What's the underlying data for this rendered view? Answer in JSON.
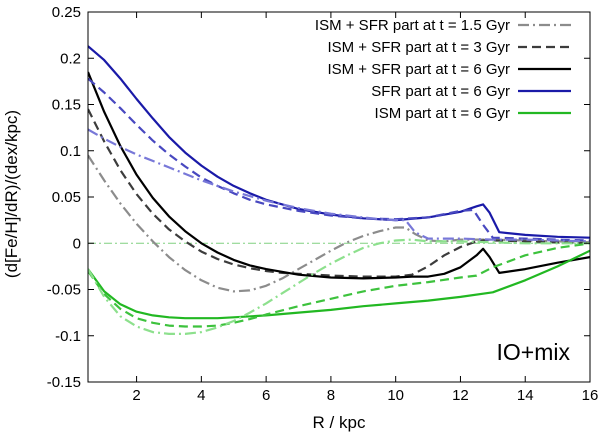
{
  "chart_data": {
    "type": "line",
    "xlabel": "R / kpc",
    "ylabel": "(d[Fe/H]/dR)/(dex/kpc)",
    "xlim": [
      0.5,
      16
    ],
    "ylim": [
      -0.15,
      0.25
    ],
    "xticks": [
      2,
      4,
      6,
      8,
      10,
      12,
      14,
      16
    ],
    "yticks": [
      -0.15,
      -0.1,
      -0.05,
      0,
      0.05,
      0.1,
      0.15,
      0.2,
      0.25
    ],
    "ytick_labels": [
      "-0.15",
      "-0.1",
      "-0.05",
      "0",
      "0.05",
      "0.1",
      "0.15",
      "0.2",
      "0.25"
    ],
    "grid": false,
    "legend_position": "top-right",
    "annotation": "IO+mix",
    "reference_line": {
      "y": 0,
      "color": "#80d080",
      "style": "dash-dot"
    },
    "legend": [
      {
        "label": "ISM + SFR part at t = 1.5 Gyr",
        "color": "#8c8c8c",
        "style": "dashdot"
      },
      {
        "label": "ISM + SFR part at t = 3 Gyr",
        "color": "#3c3c3c",
        "style": "dashed"
      },
      {
        "label": "ISM + SFR part at t = 6 Gyr",
        "color": "#000000",
        "style": "solid"
      },
      {
        "label": "SFR part at t = 6 Gyr",
        "color": "#1a1aa8",
        "style": "solid"
      },
      {
        "label": "ISM part at t = 6 Gyr",
        "color": "#22b822",
        "style": "solid"
      }
    ],
    "series": [
      {
        "color": "#8c8c8c",
        "style": "dashdot",
        "x": [
          0.5,
          1.0,
          1.5,
          2.0,
          2.5,
          3.0,
          3.5,
          4.0,
          4.5,
          5.0,
          5.5,
          6.0,
          6.5,
          7.0,
          7.5,
          8.0,
          8.5,
          9.0,
          9.5,
          10.0,
          10.3,
          10.6,
          11.0,
          11.5,
          12.0,
          13.0,
          14.0,
          15.0,
          16.0
        ],
        "y": [
          0.095,
          0.068,
          0.043,
          0.021,
          0.002,
          -0.015,
          -0.029,
          -0.04,
          -0.048,
          -0.052,
          -0.051,
          -0.046,
          -0.038,
          -0.028,
          -0.018,
          -0.008,
          0.001,
          0.008,
          0.013,
          0.017,
          0.017,
          0.01,
          0.003,
          0.002,
          0.004,
          0.004,
          0.003,
          0.002,
          0.001
        ]
      },
      {
        "color": "#3c3c3c",
        "style": "dashed",
        "x": [
          0.5,
          1.0,
          1.5,
          2.0,
          2.5,
          3.0,
          3.5,
          4.0,
          4.5,
          5.0,
          5.5,
          6.0,
          6.5,
          7.0,
          7.5,
          8.0,
          9.0,
          10.0,
          10.5,
          11.0,
          11.5,
          12.0,
          12.5,
          12.9,
          13.1,
          14.0,
          15.0,
          16.0
        ],
        "y": [
          0.145,
          0.11,
          0.079,
          0.053,
          0.032,
          0.015,
          0.002,
          -0.009,
          -0.017,
          -0.023,
          -0.027,
          -0.03,
          -0.032,
          -0.033,
          -0.034,
          -0.035,
          -0.036,
          -0.036,
          -0.034,
          -0.025,
          -0.013,
          -0.004,
          0.002,
          0.004,
          0.003,
          0.002,
          0.001,
          0.0
        ]
      },
      {
        "color": "#000000",
        "style": "solid",
        "x": [
          0.5,
          1.0,
          1.5,
          2.0,
          2.5,
          3.0,
          3.5,
          4.0,
          4.5,
          5.0,
          5.5,
          6.0,
          7.0,
          8.0,
          9.0,
          10.0,
          10.5,
          11.0,
          11.5,
          12.0,
          12.5,
          12.7,
          12.9,
          13.2,
          14.0,
          15.0,
          16.0
        ],
        "y": [
          0.185,
          0.142,
          0.105,
          0.074,
          0.049,
          0.029,
          0.013,
          0.0,
          -0.01,
          -0.018,
          -0.024,
          -0.028,
          -0.034,
          -0.037,
          -0.038,
          -0.037,
          -0.036,
          -0.036,
          -0.033,
          -0.026,
          -0.013,
          -0.006,
          -0.015,
          -0.032,
          -0.028,
          -0.021,
          -0.015
        ]
      },
      {
        "color": "#1a1aa8",
        "style": "solid",
        "x": [
          0.5,
          1.0,
          1.5,
          2.0,
          2.5,
          3.0,
          3.5,
          4.0,
          4.5,
          5.0,
          5.5,
          6.0,
          7.0,
          8.0,
          9.0,
          10.0,
          11.0,
          12.0,
          12.5,
          12.7,
          12.9,
          13.2,
          14.0,
          15.0,
          16.0
        ],
        "y": [
          0.213,
          0.198,
          0.178,
          0.156,
          0.135,
          0.115,
          0.098,
          0.084,
          0.072,
          0.062,
          0.054,
          0.047,
          0.037,
          0.031,
          0.027,
          0.025,
          0.028,
          0.034,
          0.04,
          0.042,
          0.033,
          0.012,
          0.009,
          0.007,
          0.006
        ]
      },
      {
        "color": "#4848c0",
        "style": "dashed",
        "x": [
          0.5,
          1.0,
          1.5,
          2.0,
          2.5,
          3.0,
          3.5,
          4.0,
          4.5,
          5.0,
          5.5,
          6.0,
          7.0,
          8.0,
          9.0,
          10.0,
          11.0,
          12.0,
          12.4,
          12.7,
          13.0,
          14.0,
          15.0,
          16.0
        ],
        "y": [
          0.178,
          0.163,
          0.146,
          0.128,
          0.111,
          0.096,
          0.083,
          0.071,
          0.062,
          0.054,
          0.047,
          0.042,
          0.035,
          0.03,
          0.027,
          0.026,
          0.028,
          0.035,
          0.036,
          0.02,
          0.006,
          0.005,
          0.004,
          0.003
        ]
      },
      {
        "color": "#7878d8",
        "style": "dashdot",
        "x": [
          0.5,
          1.0,
          1.5,
          2.0,
          2.5,
          3.0,
          3.5,
          4.0,
          4.5,
          5.0,
          5.5,
          6.0,
          7.0,
          8.0,
          9.0,
          9.5,
          10.0,
          10.3,
          10.6,
          11.0,
          12.0,
          13.0,
          14.0,
          15.0,
          16.0
        ],
        "y": [
          0.123,
          0.113,
          0.104,
          0.096,
          0.089,
          0.082,
          0.075,
          0.068,
          0.062,
          0.056,
          0.051,
          0.046,
          0.038,
          0.032,
          0.028,
          0.026,
          0.025,
          0.025,
          0.012,
          0.005,
          0.005,
          0.004,
          0.004,
          0.003,
          0.002
        ]
      },
      {
        "color": "#22b822",
        "style": "solid",
        "x": [
          0.5,
          1.0,
          1.5,
          2.0,
          2.5,
          3.0,
          3.5,
          4.0,
          4.5,
          5.0,
          6.0,
          7.0,
          8.0,
          9.0,
          10.0,
          11.0,
          12.0,
          13.0,
          14.0,
          15.0,
          16.0
        ],
        "y": [
          -0.028,
          -0.052,
          -0.066,
          -0.074,
          -0.078,
          -0.08,
          -0.081,
          -0.081,
          -0.081,
          -0.08,
          -0.078,
          -0.075,
          -0.072,
          -0.068,
          -0.065,
          -0.062,
          -0.058,
          -0.053,
          -0.04,
          -0.025,
          -0.008
        ]
      },
      {
        "color": "#3dc23d",
        "style": "dashed",
        "x": [
          0.5,
          1.0,
          1.5,
          2.0,
          2.5,
          3.0,
          3.5,
          4.0,
          4.5,
          5.0,
          5.5,
          6.0,
          7.0,
          8.0,
          9.0,
          10.0,
          11.0,
          12.0,
          12.5,
          13.0,
          14.0,
          15.0,
          16.0
        ],
        "y": [
          -0.03,
          -0.055,
          -0.071,
          -0.081,
          -0.086,
          -0.089,
          -0.09,
          -0.09,
          -0.089,
          -0.086,
          -0.082,
          -0.077,
          -0.068,
          -0.06,
          -0.052,
          -0.046,
          -0.042,
          -0.037,
          -0.035,
          -0.026,
          -0.013,
          -0.005,
          0.0
        ]
      },
      {
        "color": "#8de08d",
        "style": "dashdot",
        "x": [
          0.5,
          1.0,
          1.5,
          2.0,
          2.5,
          3.0,
          3.5,
          4.0,
          4.5,
          5.0,
          5.5,
          6.0,
          6.5,
          7.0,
          7.5,
          8.0,
          8.5,
          9.0,
          9.5,
          10.0,
          10.5,
          11.0,
          11.5,
          12.0,
          13.0,
          14.0,
          15.0,
          16.0
        ],
        "y": [
          -0.028,
          -0.058,
          -0.079,
          -0.09,
          -0.096,
          -0.098,
          -0.098,
          -0.096,
          -0.091,
          -0.084,
          -0.075,
          -0.065,
          -0.054,
          -0.043,
          -0.032,
          -0.022,
          -0.013,
          -0.005,
          0.0,
          0.003,
          0.004,
          0.002,
          0.002,
          0.002,
          0.001,
          0.0,
          0.0,
          0.0
        ]
      }
    ]
  }
}
